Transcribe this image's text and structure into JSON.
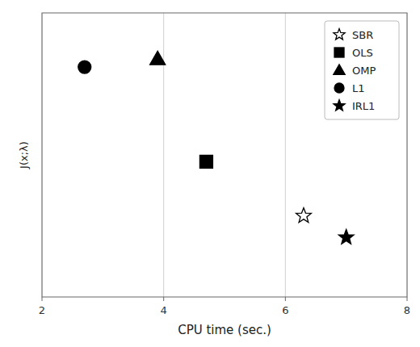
{
  "chart_data": {
    "type": "scatter",
    "xlabel": "CPU time (sec.)",
    "ylabel": "J(x;λ)",
    "xlim": [
      2,
      8
    ],
    "ylim": [
      0.0,
      1.05
    ],
    "xticks": [
      2,
      4,
      6,
      8
    ],
    "yticks": [],
    "tick_labels": "x",
    "grid": true,
    "legend": "upper right",
    "color": "#000000",
    "series": [
      {
        "name": "SBR",
        "x": [
          6.3
        ],
        "values": [
          0.3
        ],
        "marker": "star-open"
      },
      {
        "name": "OLS",
        "x": [
          4.7
        ],
        "values": [
          0.5
        ],
        "marker": "square"
      },
      {
        "name": "OMP",
        "x": [
          3.9
        ],
        "values": [
          0.88
        ],
        "marker": "triangle"
      },
      {
        "name": "L1",
        "x": [
          2.7
        ],
        "values": [
          0.85
        ],
        "marker": "circle"
      },
      {
        "name": "IRL1",
        "x": [
          7.0
        ],
        "values": [
          0.22
        ],
        "marker": "star"
      }
    ]
  }
}
